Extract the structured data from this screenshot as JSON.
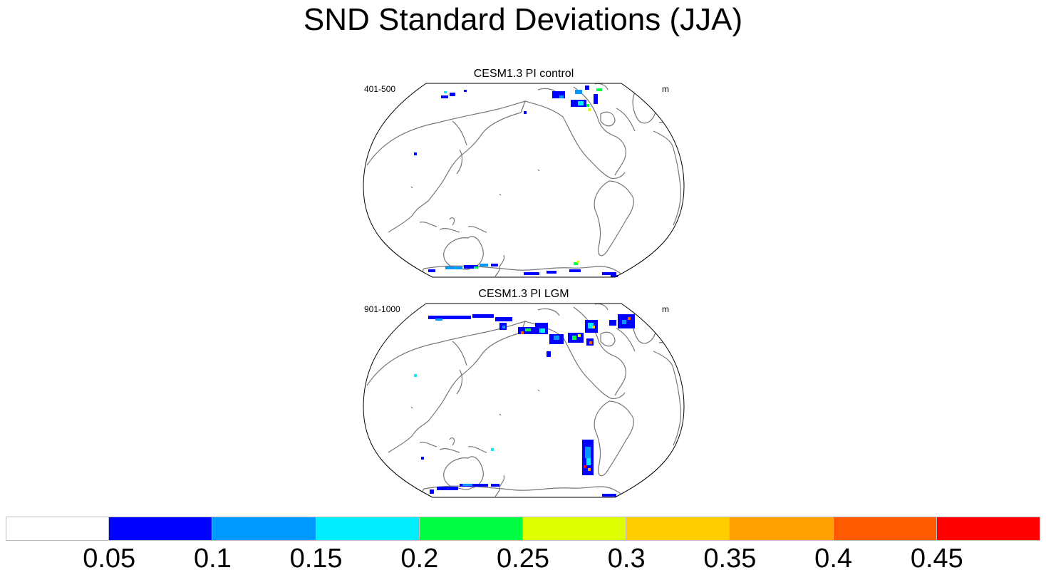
{
  "title": "SND Standard Deviations (JJA)",
  "panels": [
    {
      "title": "CESM1.3 PI control",
      "left_string": "401-500",
      "right_string": "m"
    },
    {
      "title": "CESM1.3 PI LGM",
      "left_string": "901-1000",
      "right_string": "m"
    }
  ],
  "colorbar": {
    "colors": [
      "#ffffff",
      "#0000ff",
      "#0099ff",
      "#00eeff",
      "#00ff44",
      "#ddff00",
      "#ffcc00",
      "#ffa100",
      "#ff5a00",
      "#ff0000"
    ],
    "labels": [
      "0.05",
      "0.1",
      "0.15",
      "0.2",
      "0.25",
      "0.3",
      "0.35",
      "0.4",
      "0.45"
    ]
  }
}
